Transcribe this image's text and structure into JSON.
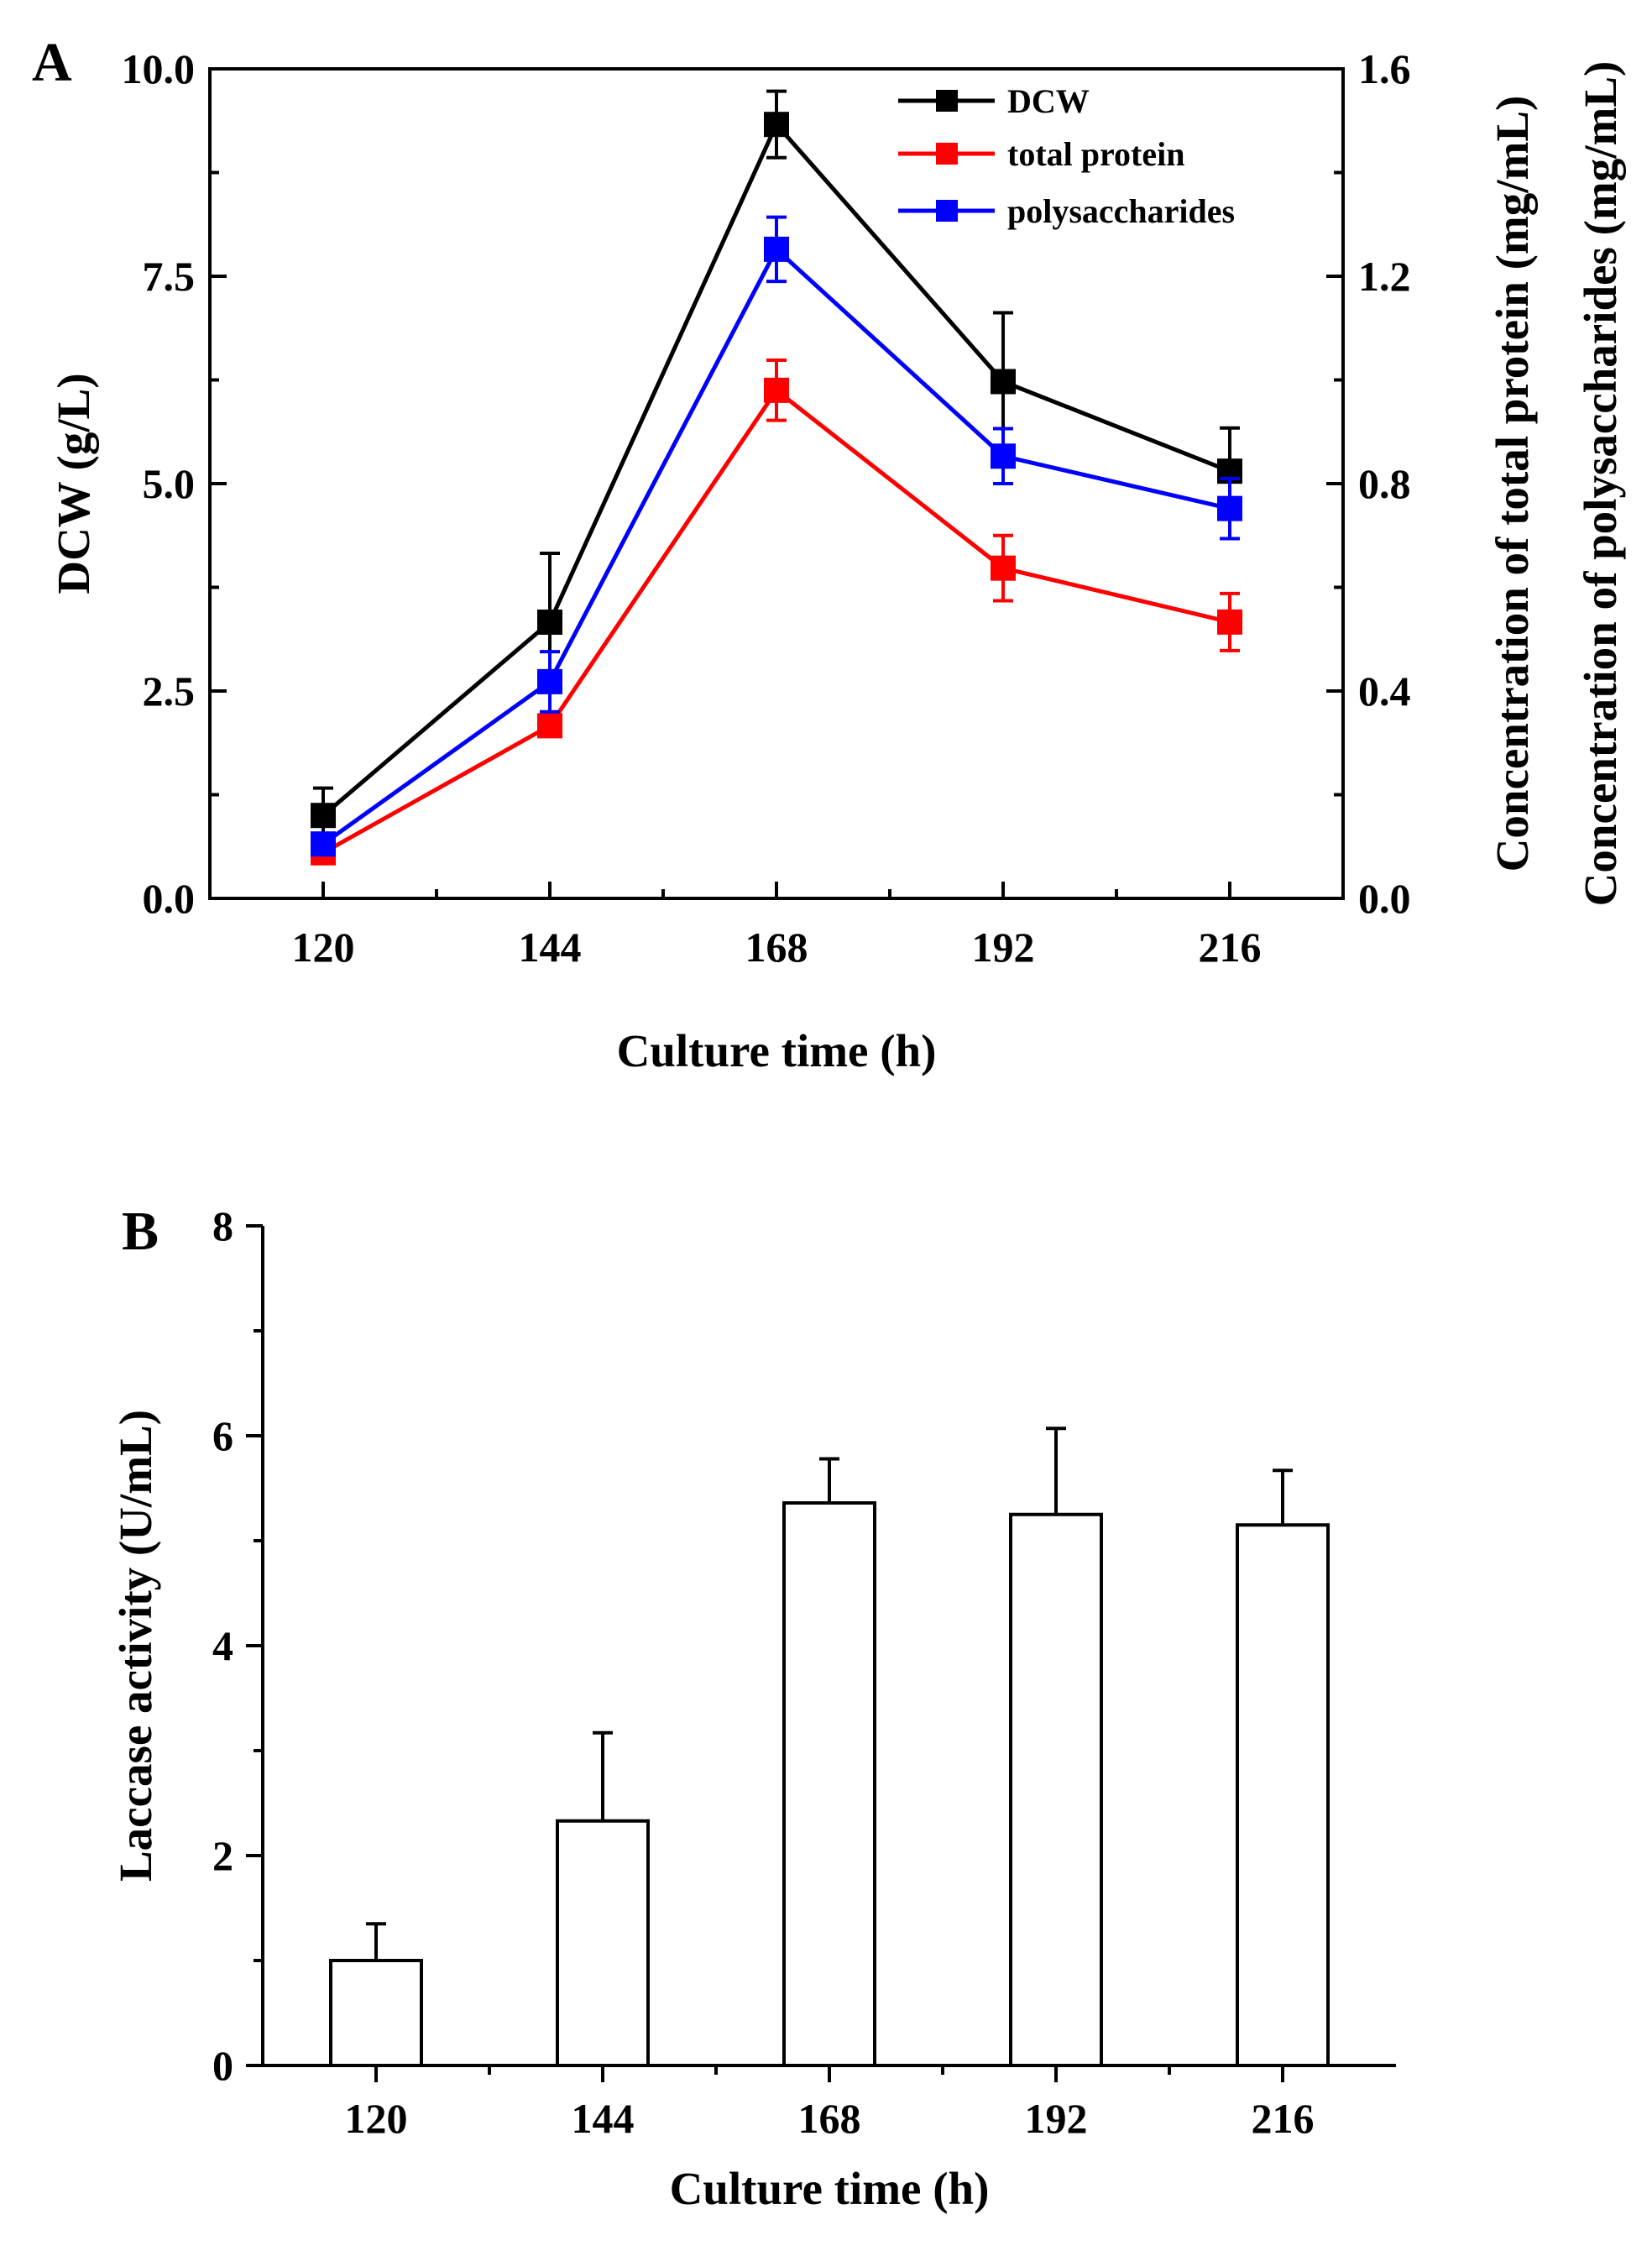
{
  "chart_data": [
    {
      "type": "line",
      "panel_label": "A",
      "title": "",
      "xlabel": "Culture time (h)",
      "ylabel": "DCW (g/L)",
      "ylabel_right_1": "Concentration of total protein (mg/mL)",
      "ylabel_right_2": "Concentration of polysaccharides (mg/mL)",
      "x": [
        120,
        144,
        168,
        192,
        216
      ],
      "x_tick_labels": [
        "120",
        "144",
        "168",
        "192",
        "216"
      ],
      "xlim": [
        108,
        228
      ],
      "ylim": [
        0,
        10
      ],
      "y_ticks": [
        0,
        2.5,
        5,
        7.5,
        10
      ],
      "y_tick_labels": [
        "0.0",
        "2.5",
        "5.0",
        "7.5",
        "10.0"
      ],
      "ylim_right": [
        0,
        1.6
      ],
      "y_ticks_right": [
        0,
        0.4,
        0.8,
        1.2,
        1.6
      ],
      "y_tick_labels_right": [
        "0.0",
        "0.4",
        "0.8",
        "1.2",
        "1.6"
      ],
      "legend_position": "top-right",
      "series": [
        {
          "name": "DCW",
          "axis": "left",
          "color": "#000000",
          "values": [
            1.0,
            3.33,
            9.33,
            6.23,
            5.15
          ],
          "errors": [
            0.33,
            0.83,
            0.4,
            0.83,
            0.52
          ]
        },
        {
          "name": "total protein",
          "axis": "right",
          "color": "#ff0000",
          "values": [
            0.088,
            0.333,
            0.98,
            0.637,
            0.533
          ],
          "errors": [
            0.02,
            0.02,
            0.058,
            0.063,
            0.055
          ]
        },
        {
          "name": "polysaccharides",
          "axis": "right",
          "color": "#0000ff",
          "values": [
            0.105,
            0.418,
            1.252,
            0.853,
            0.752
          ],
          "errors": [
            0.02,
            0.058,
            0.062,
            0.053,
            0.058
          ]
        }
      ]
    },
    {
      "type": "bar",
      "panel_label": "B",
      "title": "",
      "xlabel": "Culture time (h)",
      "ylabel": "Laccase activity (U/mL)",
      "categories": [
        "120",
        "144",
        "168",
        "192",
        "216"
      ],
      "values": [
        1.0,
        2.33,
        5.36,
        5.25,
        5.15
      ],
      "errors": [
        0.35,
        0.84,
        0.42,
        0.82,
        0.52
      ],
      "ylim": [
        0,
        8
      ],
      "y_ticks": [
        0,
        2,
        4,
        6,
        8
      ],
      "y_tick_labels": [
        "0",
        "2",
        "4",
        "6",
        "8"
      ],
      "bar_fill": "#ffffff",
      "bar_edge": "#000000"
    }
  ]
}
